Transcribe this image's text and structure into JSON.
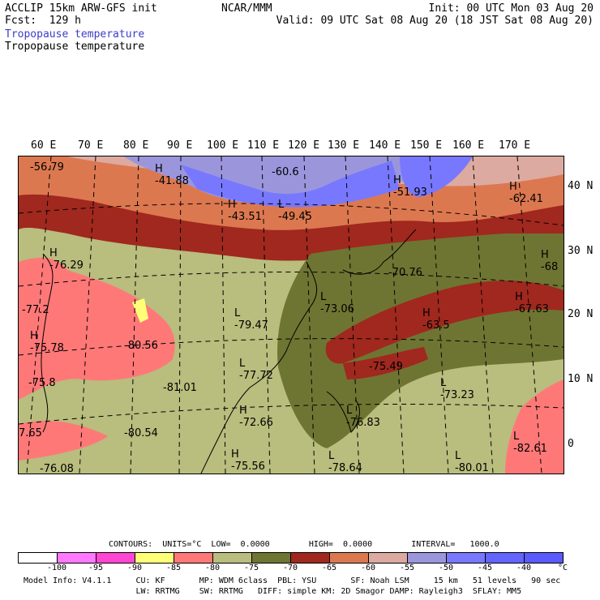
{
  "header": {
    "line1_left": "ACCLIP 15km ARW-GFS init",
    "line2_left": "Fcst:  129 h",
    "center": "NCAR/MMM",
    "init": "Init: 00 UTC Mon 03 Aug 20",
    "valid": "Valid: 09 UTC Sat 08 Aug 20 (18 JST Sat 08 Aug 20)",
    "field_title_1": "Tropopause temperature",
    "field_title_2": "Tropopause temperature"
  },
  "map": {
    "lon_labels": [
      "60 E",
      "70 E",
      "80 E",
      "90 E",
      "100 E",
      "110 E",
      "120 E",
      "130 E",
      "140 E",
      "150 E",
      "160 E",
      "170 E"
    ],
    "lat_labels": [
      "40 N",
      "30 N",
      "20 N",
      "10 N",
      "0"
    ],
    "annotations": [
      {
        "mark": "",
        "value": "-56.79"
      },
      {
        "mark": "H",
        "value": "-41.88"
      },
      {
        "mark": "",
        "value": "-60.6"
      },
      {
        "mark": "H",
        "value": "-51.93"
      },
      {
        "mark": "H",
        "value": "-62.41"
      },
      {
        "mark": "H",
        "value": "-43.51"
      },
      {
        "mark": "L",
        "value": "-49.45"
      },
      {
        "mark": "H",
        "value": "-76.29"
      },
      {
        "mark": "",
        "value": "-70.76"
      },
      {
        "mark": "H",
        "value": "-68"
      },
      {
        "mark": "",
        "value": "-77.2"
      },
      {
        "mark": "L",
        "value": "-73.06"
      },
      {
        "mark": "H",
        "value": "-67.63"
      },
      {
        "mark": "L",
        "value": "-79.47"
      },
      {
        "mark": "H",
        "value": "-63.5"
      },
      {
        "mark": "H",
        "value": "-75.78"
      },
      {
        "mark": "",
        "value": "-80.56"
      },
      {
        "mark": "",
        "value": "-75.49"
      },
      {
        "mark": "L",
        "value": "-77.72"
      },
      {
        "mark": "",
        "value": "-75.8"
      },
      {
        "mark": "",
        "value": "-81.01"
      },
      {
        "mark": "L",
        "value": "-73.23"
      },
      {
        "mark": "H",
        "value": "-72.66"
      },
      {
        "mark": "L",
        "value": "-76.83"
      },
      {
        "mark": "",
        "value": "7.65"
      },
      {
        "mark": "",
        "value": "-80.54"
      },
      {
        "mark": "L",
        "value": "-82.61"
      },
      {
        "mark": "",
        "value": "-76.08"
      },
      {
        "mark": "H",
        "value": "-75.56"
      },
      {
        "mark": "L",
        "value": "-78.64"
      },
      {
        "mark": "L",
        "value": "-80.01"
      }
    ]
  },
  "legend": {
    "contours": "CONTOURS:  UNITS=°C  LOW=  0.0000        HIGH=  0.0000        INTERVAL=   1000.0",
    "colors": [
      "#ffffff",
      "#ff78ff",
      "#ff46d2",
      "#ffff78",
      "#ff7878",
      "#b9bd7d",
      "#6e7532",
      "#a0281e",
      "#dc7850",
      "#dcaaa0",
      "#9b96dc",
      "#7878ff",
      "#6464ff",
      "#5a5aff"
    ],
    "tick_labels": [
      "-100",
      "-95",
      "-90",
      "-85",
      "-80",
      "-75",
      "-70",
      "-65",
      "-60",
      "-55",
      "-50",
      "-45",
      "-40",
      "°C"
    ]
  },
  "footer": {
    "line1": "Model Info: V4.1.1     CU: KF       MP: WDM 6class  PBL: YSU       SF: Noah LSM     15 km   51 levels   90 sec",
    "line2": "                       LW: RRTMG    SW: RRTMG   DIFF: simple KM: 2D Smagor DAMP: Rayleigh3  SFLAY: MM5"
  }
}
